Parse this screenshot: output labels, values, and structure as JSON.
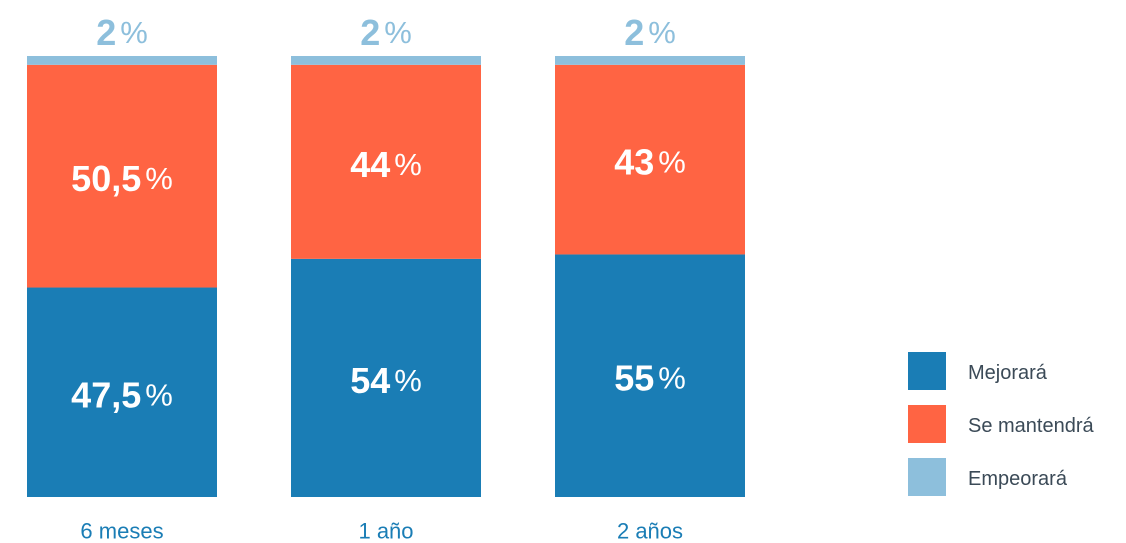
{
  "chart_data": {
    "type": "bar",
    "stacked": true,
    "categories": [
      "6 meses",
      "1 año",
      "2 años"
    ],
    "unit": "%",
    "series": [
      {
        "name": "Mejorará",
        "color": "#1a7db5",
        "values": [
          47.5,
          54,
          55
        ],
        "labels": [
          "47,5",
          "54",
          "55"
        ]
      },
      {
        "name": "Se mantendrá",
        "color": "#ff6443",
        "values": [
          50.5,
          44,
          43
        ],
        "labels": [
          "50,5",
          "44",
          "43"
        ]
      },
      {
        "name": "Empeorará",
        "color": "#8dbfdc",
        "values": [
          2,
          2,
          2
        ],
        "labels": [
          "2",
          "2",
          "2"
        ]
      }
    ],
    "ylim": [
      0,
      100
    ],
    "legend_position": "right",
    "grid": false
  },
  "colors": {
    "category_label": "#1a7db5",
    "bar_text": "#ffffff",
    "top_label": "#8dbfdc",
    "legend_text": "#3b4a57"
  }
}
